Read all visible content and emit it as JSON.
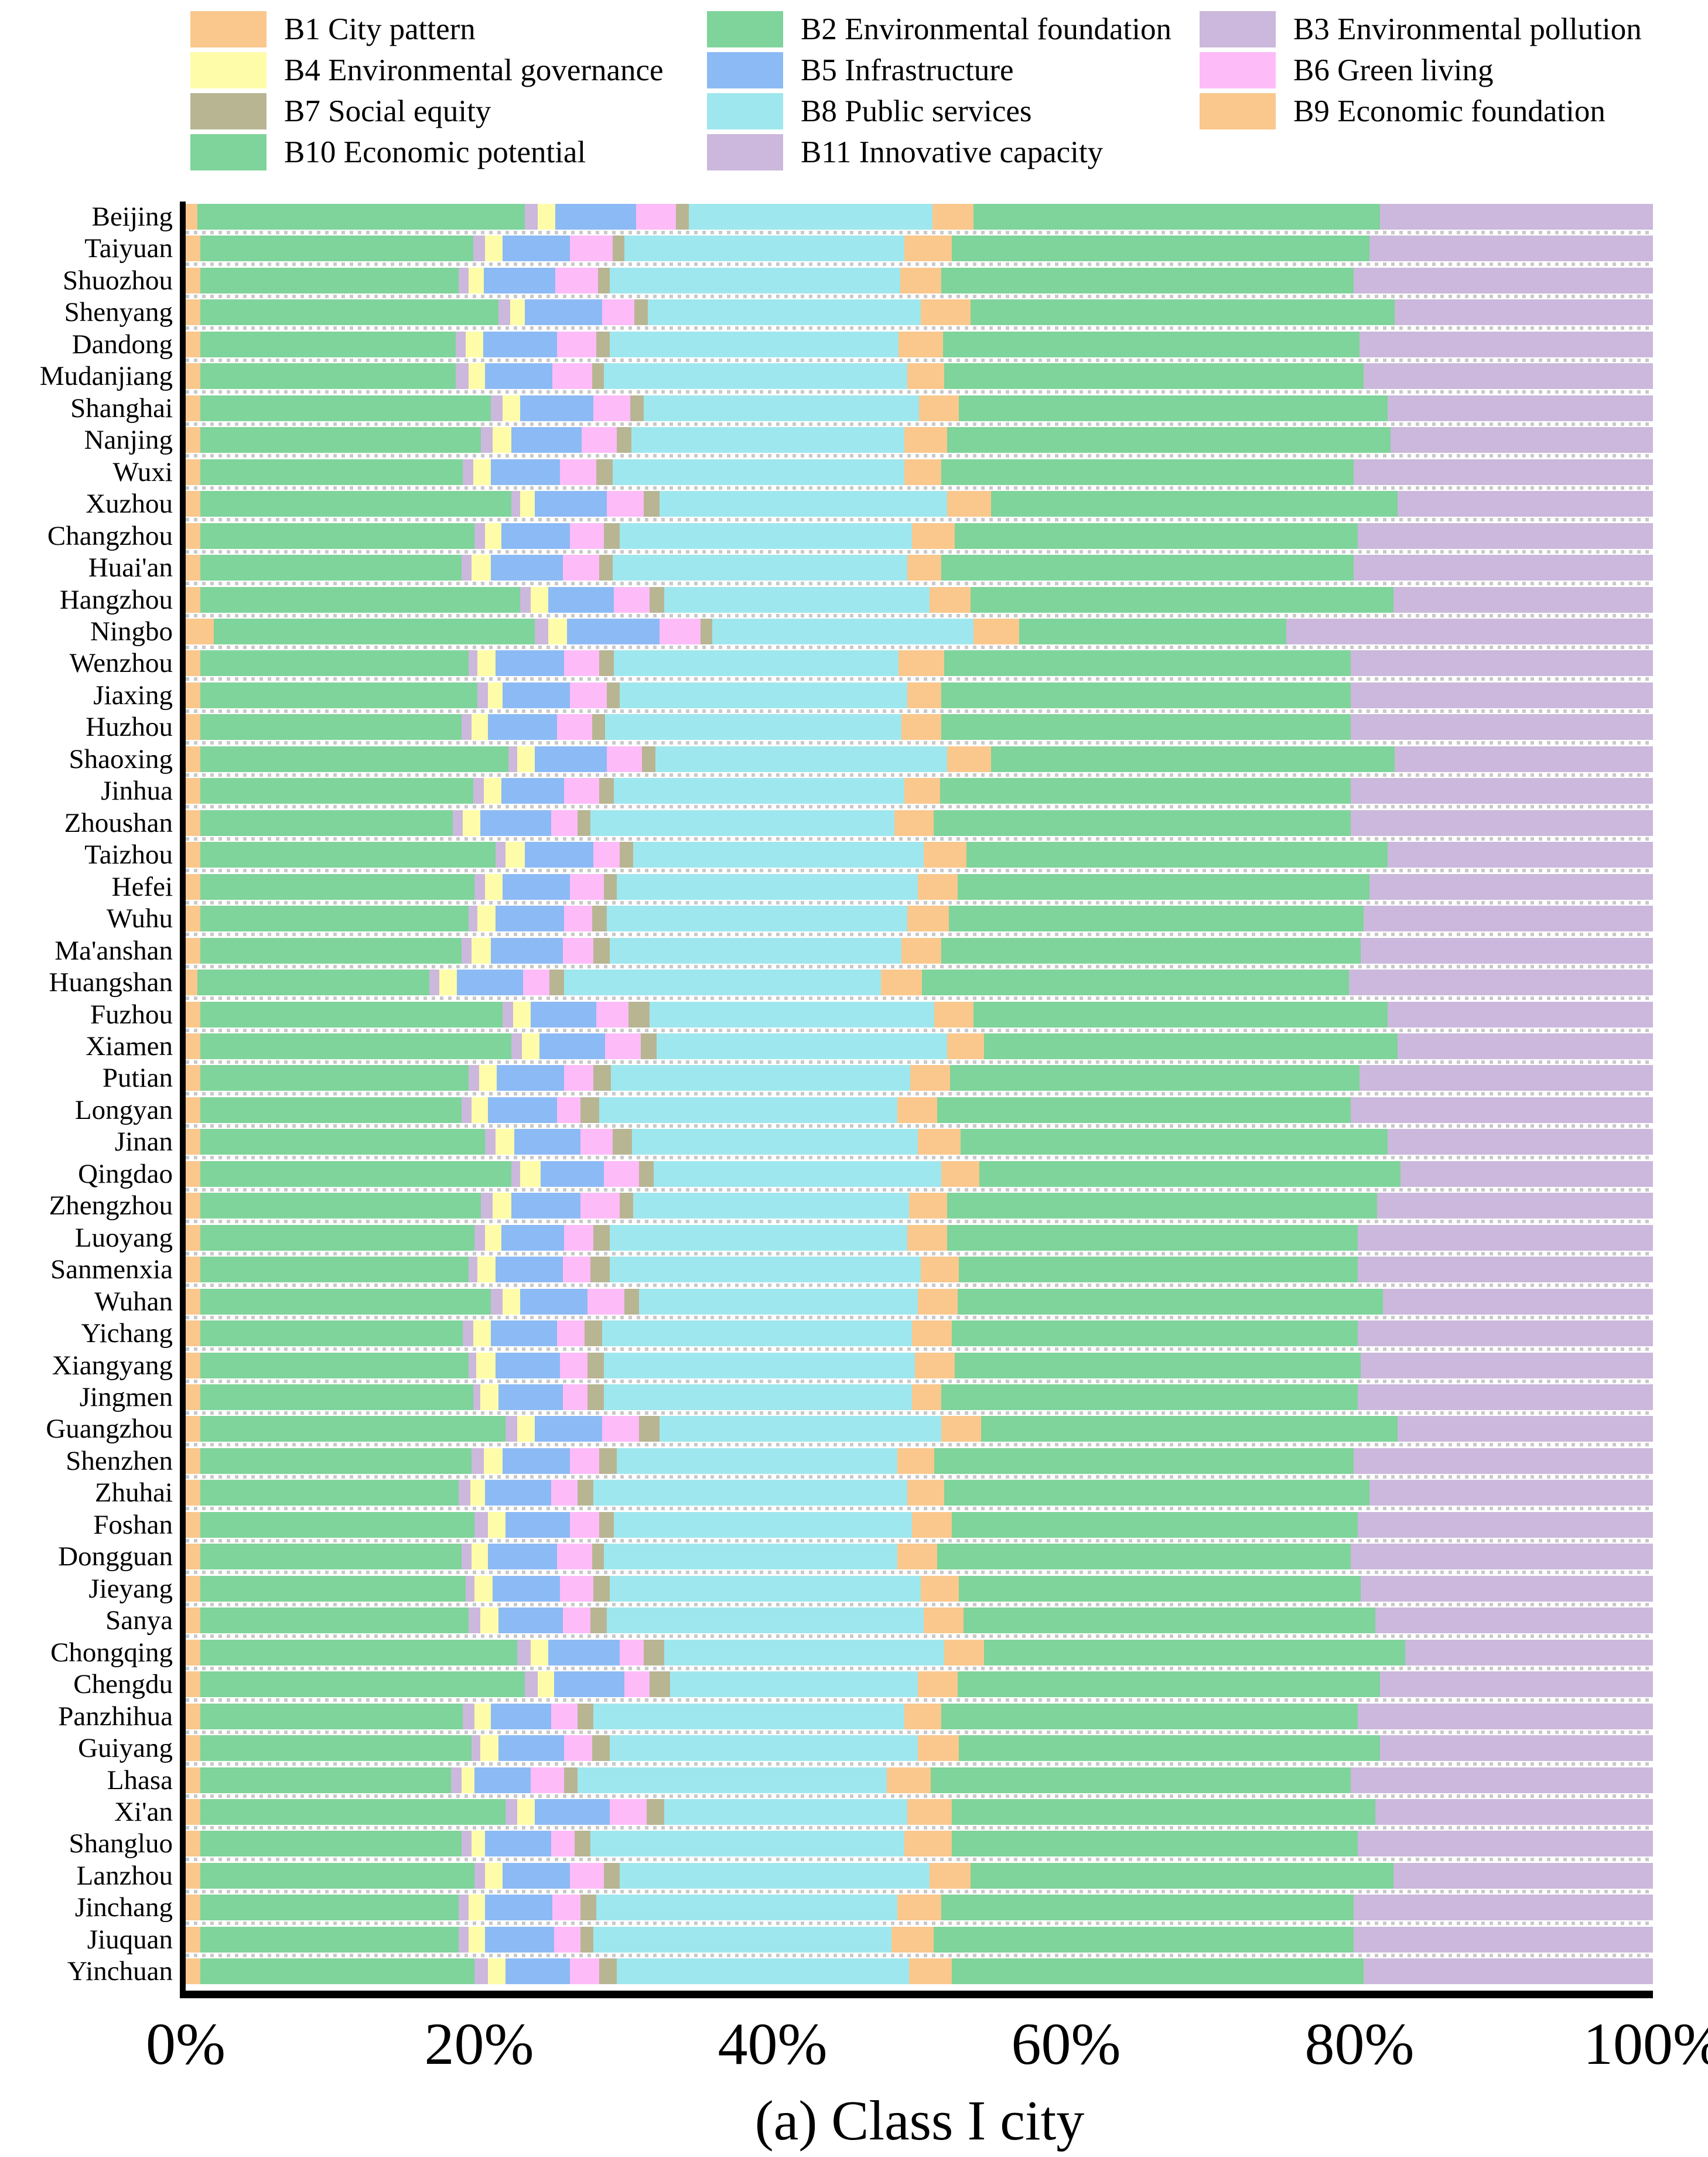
{
  "chart_data": {
    "type": "bar",
    "subtype": "horizontal-stacked-100pct",
    "title": "(a) Class I city",
    "xlabel": "",
    "ylabel": "",
    "xlim": [
      0,
      100
    ],
    "x_ticks": [
      "0%",
      "20%",
      "40%",
      "60%",
      "80%",
      "100%"
    ],
    "grid": false,
    "legend_position": "top",
    "indicators": [
      {
        "id": "B1",
        "label": "B1 City pattern",
        "color": "#FAC78C"
      },
      {
        "id": "B2",
        "label": "B2 Environmental foundation",
        "color": "#7ED49A"
      },
      {
        "id": "B3",
        "label": "B3 Environmental pollution",
        "color": "#CBB8DC"
      },
      {
        "id": "B4",
        "label": "B4 Environmental governance",
        "color": "#FEFCA8"
      },
      {
        "id": "B5",
        "label": "B5 Infrastructure",
        "color": "#8CBAF5"
      },
      {
        "id": "B6",
        "label": "B6 Green living",
        "color": "#FDBBF8"
      },
      {
        "id": "B7",
        "label": "B7 Social equity",
        "color": "#B8B593"
      },
      {
        "id": "B8",
        "label": "B8 Public services",
        "color": "#9FE7EE"
      },
      {
        "id": "B9",
        "label": "B9 Economic foundation",
        "color": "#FAC78C"
      },
      {
        "id": "B10",
        "label": "B10 Economic potential",
        "color": "#7ED49A"
      },
      {
        "id": "B11",
        "label": "B11 Innovative capacity",
        "color": "#CBB8DC"
      }
    ],
    "rows": [
      {
        "city": "Beijing",
        "values": [
          0.8,
          22.3,
          0.9,
          1.2,
          5.5,
          2.7,
          0.9,
          16.6,
          2.8,
          27.7,
          18.6
        ]
      },
      {
        "city": "Taiyuan",
        "values": [
          1.0,
          18.6,
          0.8,
          1.2,
          4.6,
          2.9,
          0.8,
          19.1,
          3.2,
          28.5,
          19.3
        ]
      },
      {
        "city": "Shuozhou",
        "values": [
          1.0,
          17.6,
          0.7,
          1.0,
          4.9,
          2.9,
          0.8,
          19.8,
          2.8,
          28.1,
          20.4
        ]
      },
      {
        "city": "Shenyang",
        "values": [
          1.0,
          20.3,
          0.8,
          1.0,
          5.3,
          2.2,
          0.9,
          18.6,
          3.4,
          28.9,
          17.6
        ]
      },
      {
        "city": "Dandong",
        "values": [
          1.0,
          17.4,
          0.7,
          1.2,
          5.0,
          2.7,
          0.9,
          19.7,
          3.0,
          28.4,
          20.0
        ]
      },
      {
        "city": "Mudanjiang",
        "values": [
          1.0,
          17.4,
          0.9,
          1.1,
          4.6,
          2.7,
          0.8,
          20.7,
          2.5,
          28.6,
          19.7
        ]
      },
      {
        "city": "Shanghai",
        "values": [
          1.0,
          19.8,
          0.8,
          1.2,
          5.0,
          2.5,
          0.9,
          18.8,
          2.7,
          29.2,
          18.1
        ]
      },
      {
        "city": "Nanjing",
        "values": [
          1.0,
          19.1,
          0.8,
          1.3,
          4.8,
          2.4,
          1.0,
          18.6,
          2.9,
          30.2,
          17.9
        ]
      },
      {
        "city": "Wuxi",
        "values": [
          1.0,
          17.9,
          0.7,
          1.2,
          4.7,
          2.5,
          1.1,
          19.9,
          2.5,
          28.1,
          20.4
        ]
      },
      {
        "city": "Xuzhou",
        "values": [
          1.0,
          21.2,
          0.6,
          1.0,
          4.9,
          2.5,
          1.1,
          19.6,
          3.0,
          27.7,
          17.4
        ]
      },
      {
        "city": "Changzhou",
        "values": [
          1.0,
          18.7,
          0.7,
          1.1,
          4.7,
          2.3,
          1.1,
          19.9,
          2.9,
          27.5,
          20.1
        ]
      },
      {
        "city": "Huai'an",
        "values": [
          1.0,
          17.8,
          0.7,
          1.3,
          4.9,
          2.5,
          0.9,
          20.1,
          2.3,
          28.1,
          20.4
        ]
      },
      {
        "city": "Hangzhou",
        "values": [
          1.0,
          21.8,
          0.7,
          1.2,
          4.5,
          2.4,
          1.0,
          18.1,
          2.8,
          28.8,
          17.7
        ]
      },
      {
        "city": "Ningbo",
        "values": [
          1.9,
          21.9,
          0.9,
          1.3,
          6.3,
          2.8,
          0.8,
          17.8,
          3.1,
          18.2,
          25.0
        ]
      },
      {
        "city": "Wenzhou",
        "values": [
          1.0,
          18.3,
          0.6,
          1.2,
          4.7,
          2.4,
          1.0,
          19.4,
          3.1,
          27.7,
          20.6
        ]
      },
      {
        "city": "Jiaxing",
        "values": [
          1.0,
          18.9,
          0.7,
          1.0,
          4.6,
          2.5,
          0.9,
          19.6,
          2.3,
          27.9,
          20.6
        ]
      },
      {
        "city": "Huzhou",
        "values": [
          1.0,
          17.8,
          0.7,
          1.1,
          4.7,
          2.4,
          0.9,
          20.2,
          2.7,
          27.9,
          20.6
        ]
      },
      {
        "city": "Shaoxing",
        "values": [
          1.0,
          21.0,
          0.6,
          1.2,
          4.9,
          2.4,
          0.9,
          19.9,
          3.0,
          27.5,
          17.6
        ]
      },
      {
        "city": "Jinhua",
        "values": [
          1.0,
          18.6,
          0.7,
          1.2,
          4.3,
          2.4,
          1.0,
          19.8,
          2.4,
          28.0,
          20.6
        ]
      },
      {
        "city": "Zhoushan",
        "values": [
          1.0,
          17.2,
          0.7,
          1.2,
          4.8,
          1.8,
          0.9,
          20.7,
          2.7,
          28.4,
          20.6
        ]
      },
      {
        "city": "Taizhou",
        "values": [
          1.0,
          20.1,
          0.7,
          1.3,
          4.7,
          1.8,
          0.9,
          19.8,
          2.9,
          28.7,
          18.1
        ]
      },
      {
        "city": "Hefei",
        "values": [
          1.0,
          18.7,
          0.7,
          1.2,
          4.6,
          2.3,
          0.9,
          20.5,
          2.7,
          28.1,
          19.3
        ]
      },
      {
        "city": "Wuhu",
        "values": [
          1.0,
          18.3,
          0.6,
          1.2,
          4.7,
          1.9,
          1.0,
          20.5,
          2.8,
          28.3,
          19.7
        ]
      },
      {
        "city": "Ma'anshan",
        "values": [
          1.0,
          17.8,
          0.7,
          1.3,
          4.9,
          2.1,
          1.1,
          19.9,
          2.7,
          28.6,
          19.9
        ]
      },
      {
        "city": "Huangshan",
        "values": [
          0.8,
          15.8,
          0.7,
          1.2,
          4.5,
          1.8,
          1.0,
          21.6,
          2.8,
          29.1,
          20.7
        ]
      },
      {
        "city": "Fuzhou",
        "values": [
          1.0,
          20.6,
          0.7,
          1.2,
          4.5,
          2.2,
          1.4,
          19.4,
          2.7,
          28.2,
          18.1
        ]
      },
      {
        "city": "Xiamen",
        "values": [
          1.0,
          21.2,
          0.7,
          1.2,
          4.5,
          2.4,
          1.1,
          19.8,
          2.5,
          28.2,
          17.4
        ]
      },
      {
        "city": "Putian",
        "values": [
          1.0,
          18.3,
          0.7,
          1.2,
          4.6,
          2.0,
          1.2,
          20.4,
          2.7,
          27.9,
          20.0
        ]
      },
      {
        "city": "Longyan",
        "values": [
          1.0,
          17.8,
          0.7,
          1.1,
          4.7,
          1.6,
          1.3,
          20.3,
          2.7,
          28.2,
          20.6
        ]
      },
      {
        "city": "Jinan",
        "values": [
          1.0,
          19.4,
          0.7,
          1.3,
          4.5,
          2.2,
          1.3,
          19.5,
          2.9,
          29.1,
          18.1
        ]
      },
      {
        "city": "Qingdao",
        "values": [
          1.0,
          21.2,
          0.6,
          1.4,
          4.3,
          2.4,
          1.0,
          19.6,
          2.6,
          28.7,
          17.2
        ]
      },
      {
        "city": "Zhengzhou",
        "values": [
          1.0,
          19.1,
          0.8,
          1.3,
          4.7,
          2.7,
          0.9,
          18.8,
          2.6,
          29.3,
          18.8
        ]
      },
      {
        "city": "Luoyang",
        "values": [
          1.0,
          18.7,
          0.7,
          1.1,
          4.3,
          2.0,
          1.1,
          20.3,
          2.7,
          28.0,
          20.1
        ]
      },
      {
        "city": "Sanmenxia",
        "values": [
          1.0,
          18.3,
          0.6,
          1.2,
          4.6,
          1.9,
          1.3,
          21.2,
          2.6,
          27.2,
          20.1
        ]
      },
      {
        "city": "Wuhan",
        "values": [
          1.0,
          19.8,
          0.8,
          1.2,
          4.6,
          2.5,
          1.0,
          19.0,
          2.7,
          29.0,
          18.4
        ]
      },
      {
        "city": "Yichang",
        "values": [
          1.0,
          17.9,
          0.7,
          1.2,
          4.5,
          1.9,
          1.2,
          21.1,
          2.7,
          27.7,
          20.1
        ]
      },
      {
        "city": "Xiangyang",
        "values": [
          1.0,
          18.3,
          0.5,
          1.3,
          4.4,
          1.9,
          1.1,
          21.2,
          2.7,
          27.7,
          19.9
        ]
      },
      {
        "city": "Jingmen",
        "values": [
          1.0,
          18.6,
          0.5,
          1.2,
          4.4,
          1.7,
          1.1,
          21.0,
          2.0,
          28.4,
          20.1
        ]
      },
      {
        "city": "Guangzhou",
        "values": [
          1.0,
          20.8,
          0.8,
          1.2,
          4.6,
          2.5,
          1.4,
          19.2,
          2.7,
          28.4,
          17.4
        ]
      },
      {
        "city": "Shenzhen",
        "values": [
          1.0,
          18.5,
          0.8,
          1.3,
          4.6,
          2.0,
          1.2,
          19.1,
          2.5,
          28.6,
          20.4
        ]
      },
      {
        "city": "Zhuhai",
        "values": [
          1.0,
          17.6,
          0.8,
          1.0,
          4.5,
          1.8,
          1.1,
          21.4,
          2.5,
          29.0,
          19.3
        ]
      },
      {
        "city": "Foshan",
        "values": [
          1.0,
          18.7,
          0.9,
          1.2,
          4.4,
          2.0,
          1.0,
          20.3,
          2.7,
          27.7,
          20.1
        ]
      },
      {
        "city": "Dongguan",
        "values": [
          1.0,
          17.8,
          0.7,
          1.1,
          4.7,
          2.4,
          0.8,
          20.0,
          2.7,
          28.2,
          20.6
        ]
      },
      {
        "city": "Jieyang",
        "values": [
          1.0,
          18.1,
          0.6,
          1.2,
          4.6,
          2.3,
          1.1,
          21.2,
          2.6,
          27.4,
          19.9
        ]
      },
      {
        "city": "Sanya",
        "values": [
          1.0,
          18.3,
          0.8,
          1.2,
          4.4,
          1.9,
          1.1,
          21.6,
          2.7,
          28.1,
          18.9
        ]
      },
      {
        "city": "Chongqing",
        "values": [
          1.0,
          21.6,
          0.9,
          1.2,
          4.9,
          1.6,
          1.4,
          19.1,
          2.7,
          28.7,
          16.9
        ]
      },
      {
        "city": "Chengdu",
        "values": [
          1.0,
          22.1,
          0.9,
          1.1,
          4.8,
          1.7,
          1.4,
          16.9,
          2.7,
          28.8,
          18.6
        ]
      },
      {
        "city": "Panzhihua",
        "values": [
          1.0,
          17.9,
          0.8,
          1.1,
          4.1,
          1.8,
          1.1,
          21.2,
          2.5,
          28.4,
          20.1
        ]
      },
      {
        "city": "Guiyang",
        "values": [
          1.0,
          18.5,
          0.6,
          1.2,
          4.5,
          1.9,
          1.2,
          21.0,
          2.8,
          28.7,
          18.6
        ]
      },
      {
        "city": "Lhasa",
        "values": [
          1.0,
          17.1,
          0.7,
          0.9,
          3.8,
          2.3,
          0.9,
          21.1,
          3.0,
          28.6,
          20.6
        ]
      },
      {
        "city": "Xi'an",
        "values": [
          1.0,
          20.8,
          0.8,
          1.2,
          5.1,
          2.5,
          1.2,
          16.6,
          3.0,
          28.9,
          18.9
        ]
      },
      {
        "city": "Shangluo",
        "values": [
          1.0,
          17.8,
          0.7,
          0.9,
          4.5,
          1.6,
          1.1,
          21.4,
          3.2,
          27.7,
          20.1
        ]
      },
      {
        "city": "Lanzhou",
        "values": [
          1.0,
          18.7,
          0.7,
          1.2,
          4.6,
          2.3,
          1.1,
          21.1,
          2.8,
          28.8,
          17.7
        ]
      },
      {
        "city": "Jinchang",
        "values": [
          1.0,
          17.6,
          0.7,
          1.1,
          4.6,
          1.9,
          1.1,
          20.5,
          3.0,
          28.1,
          20.4
        ]
      },
      {
        "city": "Jiuquan",
        "values": [
          1.0,
          17.6,
          0.7,
          1.1,
          4.7,
          1.8,
          0.9,
          20.3,
          2.9,
          28.6,
          20.4
        ]
      },
      {
        "city": "Yinchuan",
        "values": [
          1.0,
          18.7,
          0.9,
          1.2,
          4.4,
          2.0,
          1.2,
          19.9,
          2.9,
          28.1,
          19.7
        ]
      }
    ]
  }
}
